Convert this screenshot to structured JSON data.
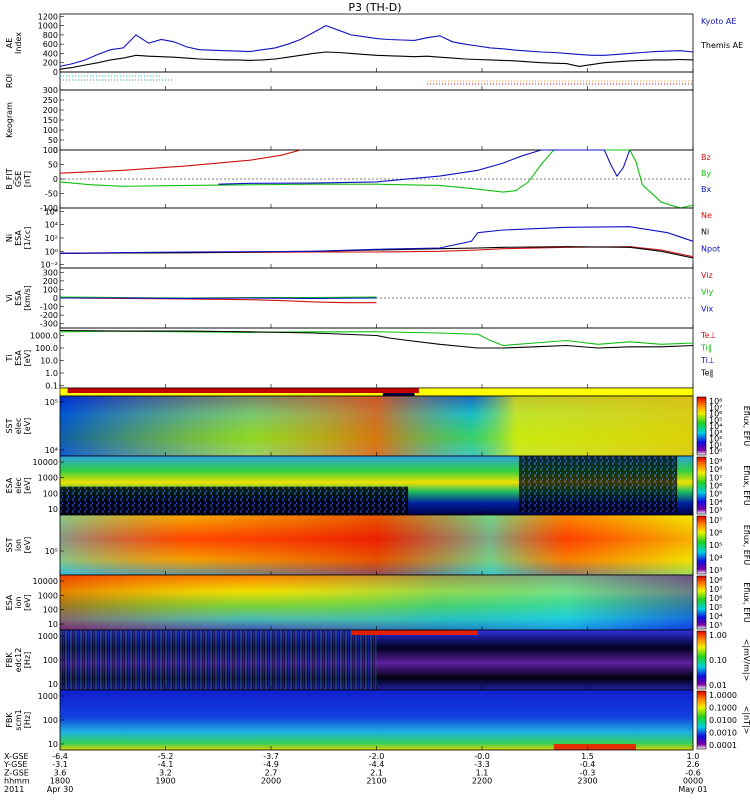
{
  "title": "P3 (TH-D)",
  "chart_data": [
    {
      "id": "ae",
      "type": "line",
      "ylabel": "AE Index",
      "yticks": [
        0,
        200,
        400,
        600,
        800,
        1000,
        1200
      ],
      "ylim": [
        0,
        1250
      ],
      "series": [
        {
          "name": "Kyoto AE",
          "color": "#1010c0",
          "x": [
            0,
            0.02,
            0.04,
            0.06,
            0.08,
            0.1,
            0.12,
            0.14,
            0.16,
            0.18,
            0.2,
            0.22,
            0.24,
            0.26,
            0.28,
            0.3,
            0.32,
            0.34,
            0.36,
            0.38,
            0.4,
            0.42,
            0.44,
            0.46,
            0.48,
            0.5,
            0.52,
            0.54,
            0.56,
            0.58,
            0.6,
            0.62,
            0.64,
            0.66,
            0.68,
            0.7,
            0.72,
            0.74,
            0.76,
            0.78,
            0.8,
            0.82,
            0.84,
            0.86,
            0.88,
            0.9,
            0.92,
            0.94,
            0.96,
            0.98,
            1.0
          ],
          "values": [
            120,
            180,
            260,
            380,
            480,
            520,
            800,
            620,
            700,
            650,
            540,
            480,
            470,
            460,
            450,
            440,
            480,
            520,
            600,
            700,
            850,
            1000,
            900,
            800,
            760,
            720,
            700,
            690,
            680,
            740,
            780,
            650,
            600,
            560,
            520,
            500,
            470,
            450,
            430,
            420,
            400,
            380,
            360,
            360,
            380,
            400,
            420,
            440,
            450,
            460,
            430
          ]
        },
        {
          "name": "Themis AE",
          "color": "#000000",
          "x": [
            0,
            0.02,
            0.04,
            0.06,
            0.08,
            0.1,
            0.12,
            0.14,
            0.16,
            0.18,
            0.2,
            0.22,
            0.24,
            0.26,
            0.28,
            0.3,
            0.32,
            0.34,
            0.36,
            0.38,
            0.4,
            0.42,
            0.44,
            0.46,
            0.48,
            0.5,
            0.52,
            0.54,
            0.56,
            0.58,
            0.6,
            0.62,
            0.64,
            0.66,
            0.68,
            0.7,
            0.72,
            0.74,
            0.76,
            0.78,
            0.8,
            0.82,
            0.84,
            0.86,
            0.88,
            0.9,
            0.92,
            0.94,
            0.96,
            0.98,
            1.0
          ],
          "values": [
            60,
            100,
            150,
            200,
            260,
            300,
            360,
            340,
            330,
            320,
            300,
            280,
            270,
            260,
            260,
            250,
            260,
            280,
            320,
            360,
            400,
            430,
            420,
            400,
            380,
            360,
            350,
            340,
            330,
            340,
            320,
            300,
            280,
            270,
            260,
            250,
            240,
            220,
            200,
            190,
            180,
            120,
            160,
            200,
            220,
            240,
            250,
            260,
            260,
            270,
            260
          ]
        }
      ]
    },
    {
      "id": "roi",
      "type": "line",
      "ylabel": "ROI",
      "yticks": []
    },
    {
      "id": "keogram",
      "type": "line",
      "ylabel": "Keogram",
      "yticks": [
        0,
        50,
        100,
        150,
        200,
        250,
        300
      ],
      "ylim": [
        0,
        300
      ]
    },
    {
      "id": "bfield",
      "type": "line",
      "ylabel": "B_FIT GSE [nT]",
      "yticks": [
        -100,
        -50,
        0,
        50,
        100
      ],
      "ylim": [
        -100,
        100
      ],
      "series": [
        {
          "name": "Bz",
          "color": "#d01010",
          "x": [
            0,
            0.1,
            0.2,
            0.3,
            0.35,
            0.38
          ],
          "values": [
            20,
            30,
            45,
            65,
            82,
            100
          ]
        },
        {
          "name": "By",
          "color": "#10c010",
          "x": [
            0,
            0.05,
            0.1,
            0.2,
            0.3,
            0.4,
            0.5,
            0.6,
            0.66,
            0.7,
            0.72,
            0.74,
            0.76,
            0.78,
            0.8,
            0.82,
            0.9,
            0.91,
            0.92,
            0.95,
            0.98,
            1.0
          ],
          "values": [
            -10,
            -20,
            -25,
            -22,
            -20,
            -18,
            -18,
            -22,
            -35,
            -45,
            -40,
            -10,
            50,
            100,
            100,
            100,
            100,
            60,
            -20,
            -80,
            -100,
            -90
          ]
        },
        {
          "name": "Bx",
          "color": "#1010c0",
          "x": [
            0.25,
            0.3,
            0.4,
            0.5,
            0.6,
            0.66,
            0.7,
            0.73,
            0.76,
            0.86,
            0.87,
            0.88,
            0.89,
            0.9
          ],
          "values": [
            -18,
            -15,
            -14,
            -10,
            10,
            30,
            55,
            80,
            100,
            100,
            50,
            10,
            40,
            100
          ]
        }
      ]
    },
    {
      "id": "density",
      "type": "line",
      "ylabel": "Ni ESA [1/cc]",
      "yticklabels": [
        "10⁻²",
        "10⁰",
        "10²",
        "10⁴",
        "10⁶"
      ],
      "ylim": [
        -2.5,
        6.5
      ],
      "series": [
        {
          "name": "Ne",
          "color": "#d01010",
          "x": [
            0,
            0.2,
            0.4,
            0.5,
            0.6,
            0.66,
            0.7,
            0.8,
            0.9,
            0.95,
            1.0
          ],
          "values": [
            -0.3,
            -0.2,
            -0.1,
            -0.1,
            0.0,
            0.2,
            0.4,
            0.6,
            0.7,
            0.2,
            -0.8
          ]
        },
        {
          "name": "Ni",
          "color": "#000000",
          "x": [
            0,
            0.2,
            0.4,
            0.5,
            0.6,
            0.66,
            0.7,
            0.8,
            0.9,
            0.95,
            1.0
          ],
          "values": [
            -0.3,
            -0.2,
            0.0,
            0.2,
            0.4,
            0.5,
            0.6,
            0.7,
            0.6,
            0.0,
            -1.0
          ]
        },
        {
          "name": "Npot",
          "color": "#1010c0",
          "x": [
            0,
            0.2,
            0.4,
            0.5,
            0.6,
            0.65,
            0.66,
            0.7,
            0.8,
            0.9,
            0.96,
            1.0
          ],
          "values": [
            -0.3,
            -0.1,
            0.0,
            0.3,
            0.5,
            1.5,
            2.8,
            3.2,
            3.6,
            3.7,
            2.8,
            1.5
          ]
        }
      ]
    },
    {
      "id": "velocity",
      "type": "line",
      "ylabel": "Vi ESA [km/s]",
      "yticks": [
        -300,
        -200,
        -100,
        0,
        100,
        200,
        300
      ],
      "ylim": [
        -350,
        350
      ],
      "series": [
        {
          "name": "Viz",
          "color": "#d01010",
          "x": [
            0,
            0.1,
            0.2,
            0.3,
            0.35,
            0.4,
            0.45,
            0.5
          ],
          "values": [
            0,
            -5,
            -10,
            -20,
            -30,
            -45,
            -55,
            -55
          ]
        },
        {
          "name": "Viy",
          "color": "#10c010",
          "x": [
            0,
            0.1,
            0.2,
            0.3,
            0.4,
            0.5
          ],
          "values": [
            10,
            5,
            0,
            5,
            5,
            10
          ]
        },
        {
          "name": "Vix",
          "color": "#1010c0",
          "x": [
            0,
            0.1,
            0.2,
            0.3,
            0.4,
            0.5
          ],
          "values": [
            0,
            0,
            -5,
            0,
            -5,
            0
          ]
        }
      ]
    },
    {
      "id": "temperature",
      "type": "line",
      "ylabel": "Ti ESA [eV]",
      "yticklabels": [
        "0.1",
        "1.0",
        "10.0",
        "100.0",
        "1000.0"
      ],
      "ylim": [
        -1.2,
        3.6
      ],
      "series": [
        {
          "name": "Te⊥",
          "color": "#d01010",
          "x": [],
          "values": []
        },
        {
          "name": "Ti‖",
          "color": "#10c010",
          "x": [
            0,
            0.1,
            0.2,
            0.3,
            0.4,
            0.5,
            0.6,
            0.66,
            0.68,
            0.7,
            0.75,
            0.8,
            0.85,
            0.9,
            0.95,
            1.0
          ],
          "values": [
            3.3,
            3.35,
            3.3,
            3.25,
            3.3,
            3.3,
            3.2,
            3.1,
            2.6,
            2.2,
            2.4,
            2.6,
            2.3,
            2.5,
            2.3,
            2.4
          ]
        },
        {
          "name": "Ti⊥",
          "color": "#1010c0",
          "x": [],
          "values": []
        },
        {
          "name": "Te‖",
          "color": "#000000",
          "x": [
            0,
            0.1,
            0.2,
            0.3,
            0.4,
            0.5,
            0.52,
            0.55,
            0.6,
            0.66,
            0.7,
            0.75,
            0.8,
            0.85,
            0.9,
            0.95,
            1.0
          ],
          "values": [
            3.4,
            3.35,
            3.35,
            3.3,
            3.2,
            3.0,
            2.8,
            2.6,
            2.3,
            2.0,
            2.0,
            2.1,
            2.2,
            2.0,
            2.1,
            2.1,
            2.2
          ]
        }
      ]
    },
    {
      "id": "sst_e",
      "type": "heatmap",
      "ylabel": "SST elec [eV]",
      "yticklabels": [
        "10⁴",
        "10⁵"
      ],
      "cbar_label": "Eflux, EFU",
      "cbar_ticks": [
        "10⁸",
        "10⁷",
        "10⁶",
        "10⁵",
        "10⁴",
        "10³",
        "10²",
        "10¹",
        "10⁰"
      ]
    },
    {
      "id": "esa_e",
      "type": "heatmap",
      "ylabel": "ESA elec [eV]",
      "yticklabels": [
        "10",
        "100",
        "1000",
        "10000"
      ],
      "cbar_label": "Eflux, EFU",
      "cbar_ticks": [
        "10⁹",
        "10⁸",
        "10⁷",
        "10⁶",
        "10⁵",
        "10⁴",
        "10³"
      ]
    },
    {
      "id": "sst_i",
      "type": "heatmap",
      "ylabel": "SST ion [eV]",
      "yticklabels": [
        "10⁵"
      ],
      "cbar_label": "Eflux, EFU",
      "cbar_ticks": [
        "10⁷",
        "10⁶",
        "10⁵",
        "10⁴",
        "10³"
      ]
    },
    {
      "id": "esa_i",
      "type": "heatmap",
      "ylabel": "ESA ion [eV]",
      "yticklabels": [
        "10",
        "100",
        "1000",
        "10000"
      ],
      "cbar_label": "Eflux, EFU",
      "cbar_ticks": [
        "10⁸",
        "10⁷",
        "10⁶",
        "10⁵",
        "10⁴",
        "10³"
      ]
    },
    {
      "id": "fbk_e",
      "type": "heatmap",
      "ylabel": "FBK edc12 [Hz]",
      "yticklabels": [
        "10",
        "100",
        "1000"
      ],
      "cbar_label": "<|mV/m|>",
      "cbar_ticks": [
        "1.00",
        "0.10",
        "0.01"
      ]
    },
    {
      "id": "fbk_b",
      "type": "heatmap",
      "ylabel": "FBK scm1 [Hz]",
      "yticklabels": [
        "10",
        "100",
        "1000"
      ],
      "cbar_label": "<|nT|>",
      "cbar_ticks": [
        "1.0000",
        "0.1000",
        "0.0100",
        "0.0010",
        "0.0001"
      ]
    }
  ],
  "xaxis": {
    "row_labels": [
      "X-GSE",
      "Y-GSE",
      "Z-GSE",
      "hhmm",
      "2011"
    ],
    "ticks": [
      {
        "x": "-6.4",
        "y": "-3.1",
        "z": "3.6",
        "t": "1800",
        "d": "Apr 30"
      },
      {
        "x": "-5.2",
        "y": "-4.1",
        "z": "3.2",
        "t": "1900",
        "d": ""
      },
      {
        "x": "-3.7",
        "y": "-4.9",
        "z": "2.7",
        "t": "2000",
        "d": ""
      },
      {
        "x": "-2.0",
        "y": "-4.4",
        "z": "2.1",
        "t": "2100",
        "d": ""
      },
      {
        "x": "-0.0",
        "y": "-3.3",
        "z": "1.1",
        "t": "2200",
        "d": ""
      },
      {
        "x": "1.5",
        "y": "-0.4",
        "z": "-0.3",
        "t": "2300",
        "d": ""
      },
      {
        "x": "1.0",
        "y": "2.6",
        "z": "-0.6",
        "t": "0000",
        "d": "May 01"
      }
    ]
  }
}
